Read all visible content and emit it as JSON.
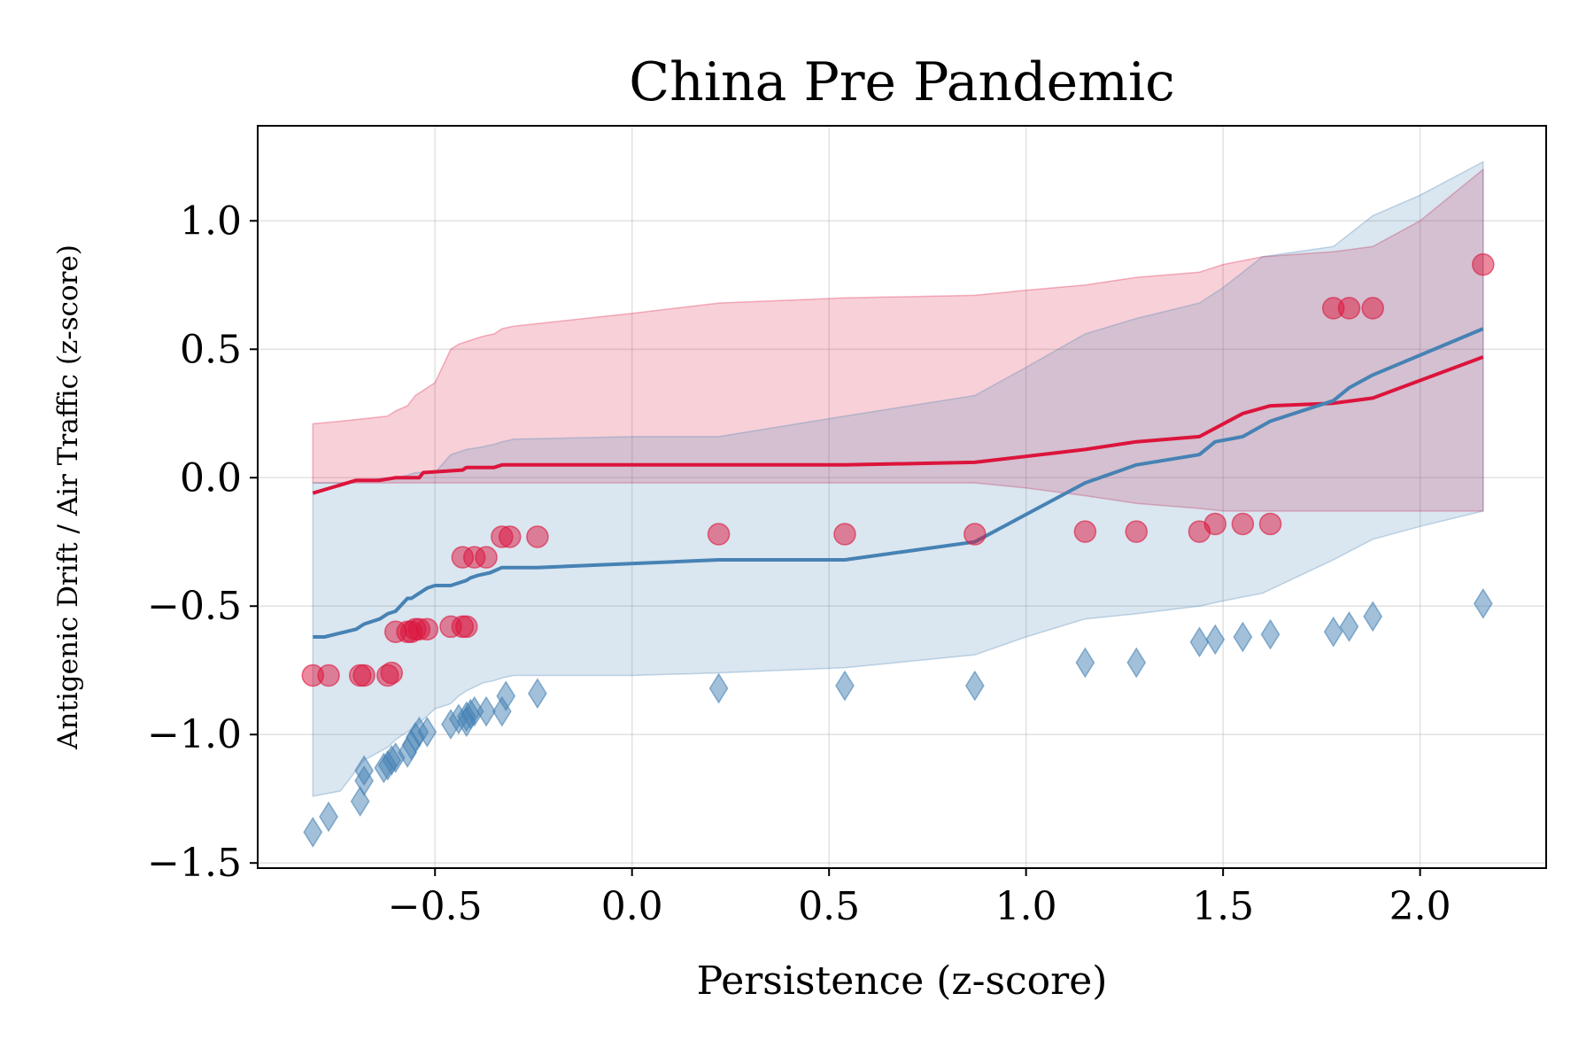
{
  "chart_data": {
    "type": "scatter",
    "title": "China Pre Pandemic",
    "xlabel": "Persistence (z-score)",
    "ylabel": "Antigenic Drift / Air Traffic (z-score)",
    "xlim": [
      -0.95,
      2.32
    ],
    "ylim": [
      -1.52,
      1.37
    ],
    "xticks": [
      -0.5,
      0.0,
      0.5,
      1.0,
      1.5,
      2.0
    ],
    "xtick_labels": [
      "−0.5",
      "0.0",
      "0.5",
      "1.0",
      "1.5",
      "2.0"
    ],
    "yticks": [
      -1.5,
      -1.0,
      -0.5,
      0.0,
      0.5,
      1.0
    ],
    "ytick_labels": [
      "−1.5",
      "−1.0",
      "−0.5",
      "0.0",
      "0.5",
      "1.0"
    ],
    "grid": true,
    "series": [
      {
        "kind": "band",
        "color": "#dc143c",
        "x": [
          -0.81,
          -0.74,
          -0.68,
          -0.62,
          -0.6,
          -0.57,
          -0.55,
          -0.5,
          -0.46,
          -0.44,
          -0.42,
          -0.38,
          -0.35,
          -0.33,
          -0.3,
          0.0,
          0.22,
          0.54,
          0.87,
          1.0,
          1.15,
          1.28,
          1.44,
          1.5,
          1.6,
          1.78,
          1.88,
          2.0,
          2.16
        ],
        "upper": [
          0.21,
          0.22,
          0.23,
          0.24,
          0.26,
          0.28,
          0.32,
          0.37,
          0.5,
          0.52,
          0.53,
          0.55,
          0.56,
          0.58,
          0.59,
          0.64,
          0.68,
          0.7,
          0.71,
          0.73,
          0.75,
          0.78,
          0.8,
          0.83,
          0.86,
          0.88,
          0.9,
          1.0,
          1.2
        ],
        "lower": [
          -0.02,
          -0.02,
          -0.02,
          -0.02,
          -0.02,
          -0.02,
          -0.02,
          -0.02,
          -0.02,
          -0.02,
          -0.02,
          -0.02,
          -0.02,
          -0.02,
          -0.02,
          -0.02,
          -0.02,
          -0.02,
          -0.02,
          -0.04,
          -0.07,
          -0.1,
          -0.12,
          -0.13,
          -0.13,
          -0.13,
          -0.13,
          -0.13,
          -0.13
        ]
      },
      {
        "kind": "band",
        "color": "#4682b4",
        "x": [
          -0.81,
          -0.74,
          -0.68,
          -0.62,
          -0.6,
          -0.57,
          -0.55,
          -0.5,
          -0.46,
          -0.44,
          -0.42,
          -0.38,
          -0.35,
          -0.33,
          -0.3,
          0.0,
          0.22,
          0.54,
          0.87,
          1.0,
          1.15,
          1.28,
          1.44,
          1.5,
          1.6,
          1.78,
          1.88,
          2.0,
          2.16
        ],
        "upper": [
          -0.02,
          -0.02,
          -0.01,
          0.0,
          0.0,
          0.01,
          0.02,
          0.02,
          0.09,
          0.1,
          0.11,
          0.12,
          0.13,
          0.14,
          0.15,
          0.16,
          0.16,
          0.24,
          0.32,
          0.43,
          0.56,
          0.62,
          0.68,
          0.74,
          0.86,
          0.9,
          1.02,
          1.1,
          1.23
        ],
        "lower": [
          -1.24,
          -1.22,
          -1.1,
          -1.05,
          -1.02,
          -0.99,
          -0.97,
          -0.9,
          -0.88,
          -0.85,
          -0.83,
          -0.8,
          -0.79,
          -0.78,
          -0.77,
          -0.77,
          -0.76,
          -0.74,
          -0.69,
          -0.62,
          -0.55,
          -0.53,
          -0.5,
          -0.48,
          -0.45,
          -0.32,
          -0.24,
          -0.19,
          -0.13
        ]
      },
      {
        "kind": "line",
        "color": "#dc143c",
        "x": [
          -0.81,
          -0.7,
          -0.64,
          -0.6,
          -0.59,
          -0.54,
          -0.53,
          -0.43,
          -0.42,
          -0.35,
          -0.33,
          -0.24,
          0.22,
          0.54,
          0.87,
          1.15,
          1.28,
          1.44,
          1.55,
          1.62,
          1.78,
          1.88,
          2.16
        ],
        "y": [
          -0.06,
          -0.01,
          -0.01,
          0.0,
          0.0,
          0.0,
          0.02,
          0.03,
          0.04,
          0.04,
          0.05,
          0.05,
          0.05,
          0.05,
          0.06,
          0.11,
          0.14,
          0.16,
          0.25,
          0.28,
          0.29,
          0.31,
          0.47
        ]
      },
      {
        "kind": "line",
        "color": "#4682b4",
        "x": [
          -0.81,
          -0.78,
          -0.7,
          -0.68,
          -0.64,
          -0.62,
          -0.6,
          -0.57,
          -0.56,
          -0.54,
          -0.52,
          -0.5,
          -0.46,
          -0.42,
          -0.41,
          -0.39,
          -0.36,
          -0.33,
          -0.24,
          0.22,
          0.54,
          0.87,
          1.15,
          1.28,
          1.44,
          1.48,
          1.55,
          1.62,
          1.78,
          1.82,
          1.88,
          2.16
        ],
        "y": [
          -0.62,
          -0.62,
          -0.59,
          -0.57,
          -0.55,
          -0.53,
          -0.52,
          -0.47,
          -0.47,
          -0.45,
          -0.43,
          -0.42,
          -0.42,
          -0.4,
          -0.39,
          -0.38,
          -0.37,
          -0.35,
          -0.35,
          -0.32,
          -0.32,
          -0.25,
          -0.02,
          0.05,
          0.09,
          0.14,
          0.16,
          0.22,
          0.3,
          0.35,
          0.4,
          0.58
        ]
      },
      {
        "kind": "scatter",
        "marker": "circle",
        "color": "#dc143c",
        "x": [
          -0.81,
          -0.77,
          -0.69,
          -0.68,
          -0.62,
          -0.61,
          -0.6,
          -0.57,
          -0.56,
          -0.55,
          -0.54,
          -0.52,
          -0.46,
          -0.43,
          -0.42,
          -0.43,
          -0.4,
          -0.37,
          -0.33,
          -0.31,
          -0.24,
          0.22,
          0.54,
          0.87,
          1.15,
          1.28,
          1.44,
          1.48,
          1.55,
          1.62,
          1.78,
          1.82,
          1.88,
          2.16
        ],
        "y": [
          -0.77,
          -0.77,
          -0.77,
          -0.77,
          -0.77,
          -0.76,
          -0.6,
          -0.6,
          -0.6,
          -0.59,
          -0.59,
          -0.59,
          -0.58,
          -0.58,
          -0.58,
          -0.31,
          -0.31,
          -0.31,
          -0.23,
          -0.23,
          -0.23,
          -0.22,
          -0.22,
          -0.22,
          -0.21,
          -0.21,
          -0.21,
          -0.18,
          -0.18,
          -0.18,
          0.66,
          0.66,
          0.66,
          0.83
        ]
      },
      {
        "kind": "scatter",
        "marker": "diamond",
        "color": "#4682b4",
        "x": [
          -0.81,
          -0.77,
          -0.69,
          -0.68,
          -0.68,
          -0.63,
          -0.62,
          -0.61,
          -0.6,
          -0.57,
          -0.56,
          -0.55,
          -0.54,
          -0.52,
          -0.46,
          -0.44,
          -0.42,
          -0.42,
          -0.41,
          -0.4,
          -0.37,
          -0.33,
          -0.32,
          -0.24,
          0.22,
          0.54,
          0.87,
          1.15,
          1.28,
          1.44,
          1.48,
          1.55,
          1.62,
          1.78,
          1.82,
          1.88,
          2.16
        ],
        "y": [
          -1.38,
          -1.32,
          -1.26,
          -1.18,
          -1.14,
          -1.13,
          -1.12,
          -1.1,
          -1.09,
          -1.07,
          -1.04,
          -1.01,
          -0.99,
          -0.99,
          -0.96,
          -0.94,
          -0.95,
          -0.93,
          -0.92,
          -0.91,
          -0.91,
          -0.91,
          -0.85,
          -0.84,
          -0.82,
          -0.81,
          -0.81,
          -0.72,
          -0.72,
          -0.64,
          -0.63,
          -0.62,
          -0.61,
          -0.6,
          -0.58,
          -0.54,
          -0.49
        ]
      }
    ]
  }
}
